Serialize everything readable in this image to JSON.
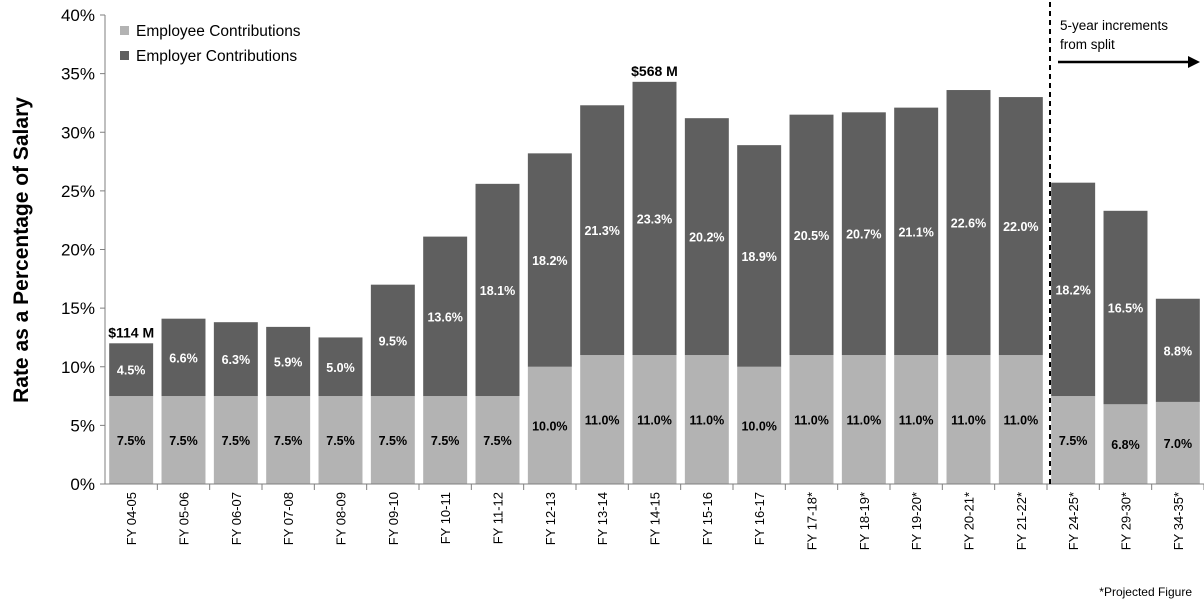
{
  "chart_data": {
    "type": "bar",
    "stacked": true,
    "categories": [
      "FY 04-05",
      "FY 05-06",
      "FY 06-07",
      "FY 07-08",
      "FY 08-09",
      "FY 09-10",
      "FY 10-11",
      "FY 11-12",
      "FY 12-13",
      "FY 13-14",
      "FY 14-15",
      "FY 15-16",
      "FY 16-17",
      "FY 17-18*",
      "FY 18-19*",
      "FY 19-20*",
      "FY 20-21*",
      "FY 21-22*",
      "FY 24-25*",
      "FY 29-30*",
      "FY 34-35*"
    ],
    "series": [
      {
        "name": "Employee Contributions",
        "color": "#b3b3b3",
        "values": [
          7.5,
          7.5,
          7.5,
          7.5,
          7.5,
          7.5,
          7.5,
          7.5,
          10.0,
          11.0,
          11.0,
          11.0,
          10.0,
          11.0,
          11.0,
          11.0,
          11.0,
          11.0,
          7.5,
          6.8,
          7.0
        ],
        "labels": [
          "7.5%",
          "7.5%",
          "7.5%",
          "7.5%",
          "7.5%",
          "7.5%",
          "7.5%",
          "7.5%",
          "10.0%",
          "11.0%",
          "11.0%",
          "11.0%",
          "10.0%",
          "11.0%",
          "11.0%",
          "11.0%",
          "11.0%",
          "11.0%",
          "7.5%",
          "6.8%",
          "7.0%"
        ]
      },
      {
        "name": "Employer Contributions",
        "color": "#5f5f5f",
        "values": [
          4.5,
          6.6,
          6.3,
          5.9,
          5.0,
          9.5,
          13.6,
          18.1,
          18.2,
          21.3,
          23.3,
          20.2,
          18.9,
          20.5,
          20.7,
          21.1,
          22.6,
          22.0,
          18.2,
          16.5,
          8.8
        ],
        "labels": [
          "4.5%",
          "6.6%",
          "6.3%",
          "5.9%",
          "5.0%",
          "9.5%",
          "13.6%",
          "18.1%",
          "18.2%",
          "21.3%",
          "23.3%",
          "20.2%",
          "18.9%",
          "20.5%",
          "20.7%",
          "21.1%",
          "22.6%",
          "22.0%",
          "18.2%",
          "16.5%",
          "8.8%"
        ]
      }
    ],
    "ylabel": "Rate as a Percentage of Salary",
    "ylim": [
      0,
      40
    ],
    "yticks": [
      "0%",
      "5%",
      "10%",
      "15%",
      "20%",
      "25%",
      "30%",
      "35%",
      "40%"
    ],
    "grid": false,
    "legend_position": "top-left",
    "annotations": [
      {
        "text": "$114 M",
        "category_index": 0
      },
      {
        "text": "$568 M",
        "category_index": 10
      }
    ],
    "divider": {
      "after_category_index": 17,
      "text_lines": [
        "5-year increments",
        "from split"
      ]
    },
    "footnote": "*Projected Figure"
  }
}
